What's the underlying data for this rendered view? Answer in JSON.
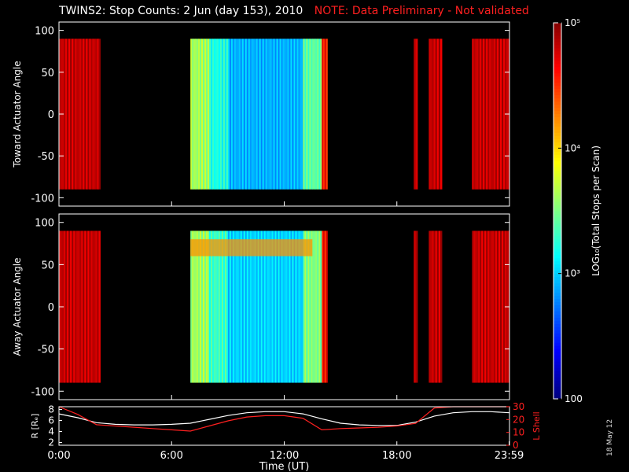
{
  "header": {
    "title": "TWINS2: Stop Counts:  2 Jun (day 153), 2010",
    "note": "NOTE: Data Preliminary - Not validated"
  },
  "footer": {
    "date_stamp": "18 May 12"
  },
  "colors": {
    "background": "#000000",
    "frame": "#ffffff",
    "note": "#ff2020",
    "r_line": "#ffffff",
    "lshell_line": "#ff2020"
  },
  "chart_data": [
    {
      "type": "heatmap",
      "title": "",
      "ylabel": "Toward Actuator Angle",
      "xlim": [
        0,
        24
      ],
      "ylim": [
        -110,
        110
      ],
      "yticks": [
        100,
        50,
        0,
        -50,
        -100
      ],
      "data_ylim": [
        -90,
        90
      ],
      "log_counts_by_time": [
        {
          "start": 0.0,
          "end": 2.2,
          "log_value": 4.8
        },
        {
          "start": 7.0,
          "end": 8.0,
          "log_value": 3.6
        },
        {
          "start": 8.0,
          "end": 9.0,
          "log_value": 3.2
        },
        {
          "start": 9.0,
          "end": 13.0,
          "log_value": 2.9
        },
        {
          "start": 13.0,
          "end": 14.0,
          "log_value": 3.4
        },
        {
          "start": 14.0,
          "end": 14.3,
          "log_value": 4.6
        },
        {
          "start": 18.9,
          "end": 19.1,
          "log_value": 4.8
        },
        {
          "start": 19.7,
          "end": 20.4,
          "log_value": 4.8
        },
        {
          "start": 22.0,
          "end": 24.0,
          "log_value": 4.8
        }
      ]
    },
    {
      "type": "heatmap",
      "title": "",
      "ylabel": "Away Actuator Angle",
      "xlim": [
        0,
        24
      ],
      "ylim": [
        -110,
        110
      ],
      "yticks": [
        100,
        50,
        0,
        -50,
        -100
      ],
      "data_ylim": [
        -90,
        90
      ],
      "log_counts_by_time": [
        {
          "start": 0.0,
          "end": 2.2,
          "log_value": 4.8
        },
        {
          "start": 7.0,
          "end": 8.0,
          "log_value": 3.6
        },
        {
          "start": 8.0,
          "end": 9.0,
          "log_value": 3.3
        },
        {
          "start": 9.0,
          "end": 13.0,
          "log_value": 3.0
        },
        {
          "start": 13.0,
          "end": 14.0,
          "log_value": 3.5
        },
        {
          "start": 14.0,
          "end": 14.3,
          "log_value": 4.6
        },
        {
          "start": 18.9,
          "end": 19.1,
          "log_value": 4.8
        },
        {
          "start": 19.7,
          "end": 20.4,
          "log_value": 4.8
        },
        {
          "start": 22.0,
          "end": 24.0,
          "log_value": 4.8
        }
      ],
      "band": {
        "angle_range": [
          60,
          80
        ],
        "time_range": [
          7.0,
          13.5
        ],
        "log_value": 4.2
      }
    },
    {
      "type": "line",
      "title": "",
      "xlabel": "Time (UT)",
      "ylabel_left": "R [Rₑ]",
      "ylabel_right": "L Shell",
      "xlim": [
        0,
        24
      ],
      "xticks": [
        0,
        6,
        12,
        18,
        23.98
      ],
      "xtick_labels": [
        "0:00",
        "6:00",
        "12:00",
        "18:00",
        "23:59"
      ],
      "y_left_lim": [
        1.5,
        8.5
      ],
      "y_left_ticks": [
        2,
        4,
        6,
        8
      ],
      "y_right_lim": [
        0,
        30
      ],
      "y_right_ticks": [
        0,
        10,
        20,
        30
      ],
      "series": [
        {
          "name": "R",
          "axis": "left",
          "x": [
            0,
            1,
            2,
            3,
            4,
            5,
            6,
            7,
            8,
            9,
            10,
            11,
            12,
            13,
            14,
            15,
            16,
            17,
            18,
            19,
            20,
            21,
            22,
            23,
            24
          ],
          "y": [
            7.2,
            6.5,
            5.6,
            5.3,
            5.2,
            5.2,
            5.3,
            5.5,
            6.2,
            6.9,
            7.4,
            7.6,
            7.6,
            7.2,
            6.3,
            5.5,
            5.2,
            5.1,
            5.1,
            5.7,
            6.8,
            7.4,
            7.6,
            7.6,
            7.4
          ]
        },
        {
          "name": "L Shell",
          "axis": "right",
          "x": [
            0,
            1,
            2,
            3,
            4,
            5,
            6,
            7,
            8,
            9,
            10,
            11,
            12,
            13,
            14,
            15,
            16,
            17,
            18,
            19,
            20,
            21,
            22,
            23,
            24
          ],
          "y": [
            30,
            24,
            16,
            15,
            14,
            13,
            12,
            11,
            15,
            19,
            22,
            23,
            23,
            21,
            12,
            13,
            13.5,
            14,
            15,
            17,
            29,
            30,
            30,
            30,
            30
          ]
        }
      ]
    },
    {
      "type": "colorbar",
      "ylabel": "LOG₁₀(Total Stops per Scan)",
      "scale": "log",
      "range": [
        100,
        100000
      ],
      "tick_labels": [
        "10⁵",
        "10⁴",
        "10³",
        "100"
      ],
      "tick_values": [
        100000,
        10000,
        1000,
        100
      ]
    }
  ]
}
